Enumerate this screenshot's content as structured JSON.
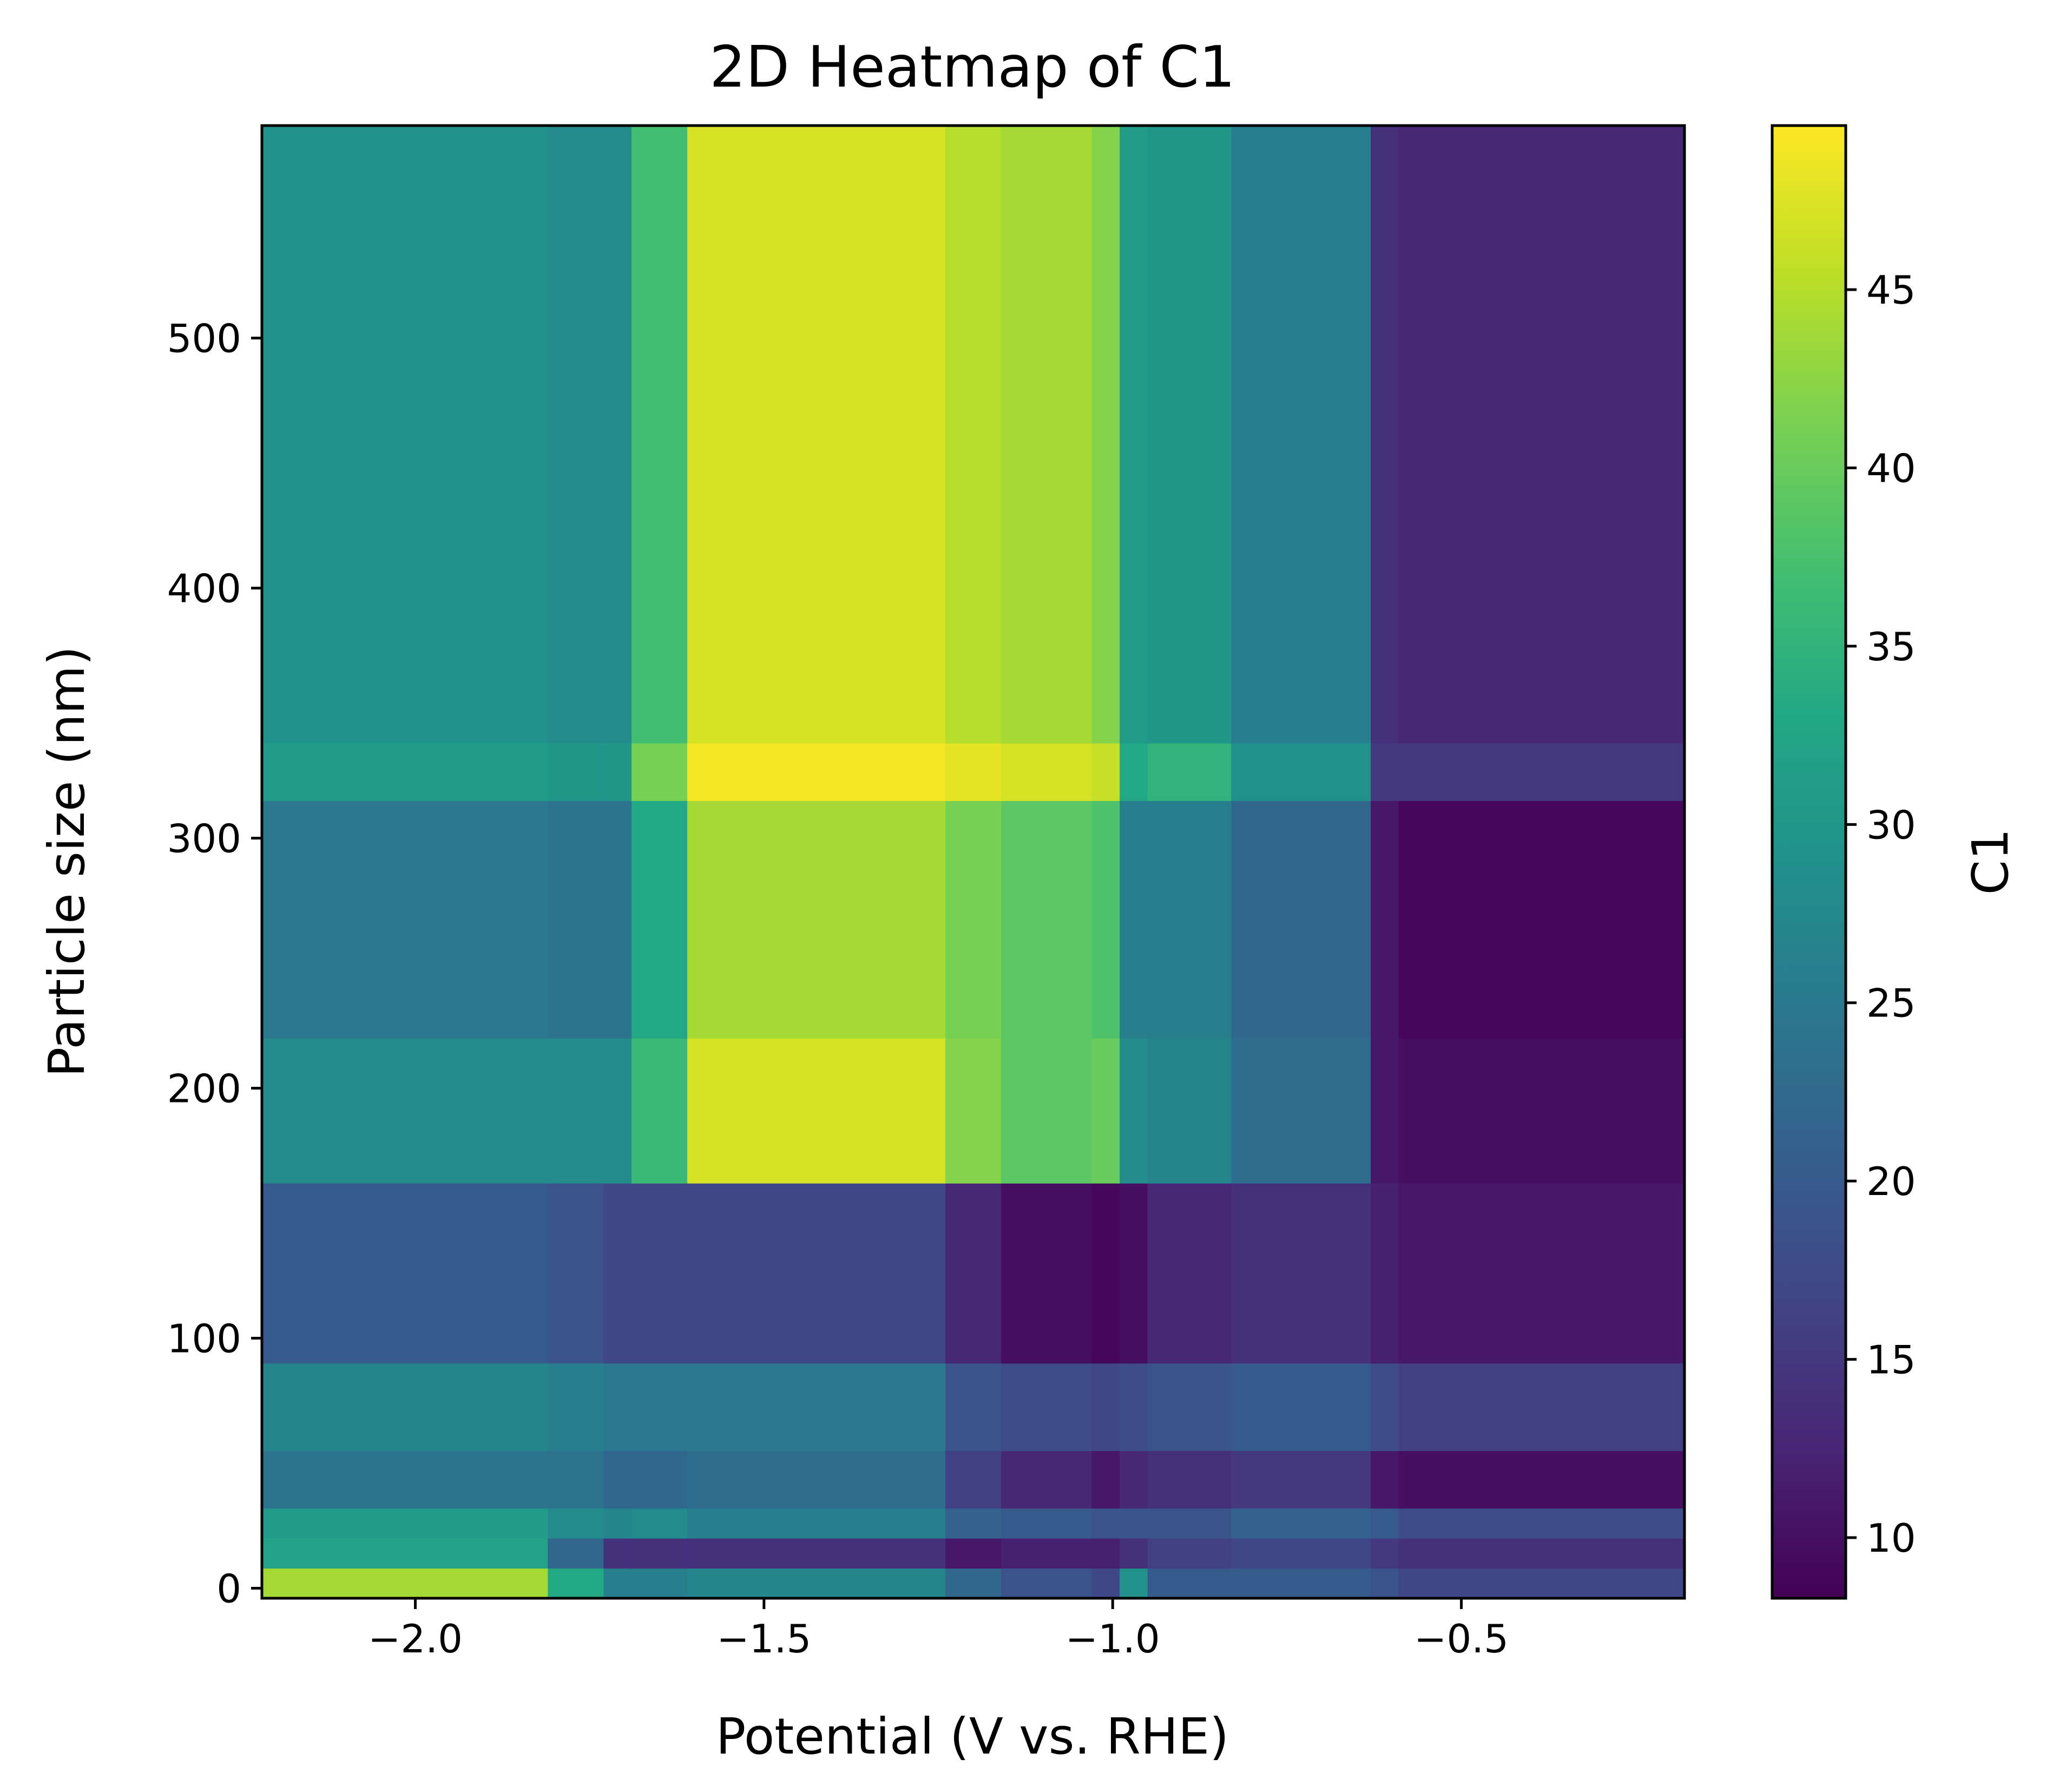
{
  "chart_data": {
    "type": "heatmap",
    "title": "2D Heatmap of C1",
    "xlabel": "Potential (V vs. RHE)",
    "ylabel": "Particle size (nm)",
    "colorbar_label": "C1",
    "colormap": "viridis",
    "xlim": [
      -2.22,
      -0.18
    ],
    "ylim": [
      -4,
      585
    ],
    "clim": [
      8.3,
      49.6
    ],
    "x_ticks": [
      -2.0,
      -1.5,
      -1.0,
      -0.5
    ],
    "x_tick_labels": [
      "−2.0",
      "−1.5",
      "−1.0",
      "−0.5"
    ],
    "y_ticks": [
      0,
      100,
      200,
      300,
      400,
      500
    ],
    "y_tick_labels": [
      "0",
      "100",
      "200",
      "300",
      "400",
      "500"
    ],
    "colorbar_ticks": [
      10,
      15,
      20,
      25,
      30,
      35,
      40,
      45
    ],
    "colorbar_tick_labels": [
      "10",
      "15",
      "20",
      "25",
      "30",
      "35",
      "40",
      "45"
    ],
    "x_edges": [
      -2.22,
      -1.81,
      -1.73,
      -1.69,
      -1.61,
      -1.24,
      -1.16,
      -1.03,
      -0.99,
      -0.95,
      -0.83,
      -0.63,
      -0.59,
      -0.18
    ],
    "y_edges": [
      -4,
      8,
      20,
      32,
      55,
      90,
      162,
      220,
      315,
      338,
      585
    ],
    "values": [
      [
        44,
        33,
        26,
        26,
        27,
        22,
        19,
        17,
        29,
        20,
        20,
        19,
        17
      ],
      [
        32,
        22,
        14,
        14,
        14,
        11,
        12,
        12,
        14,
        16,
        17,
        15,
        14
      ],
      [
        31,
        28,
        27,
        28,
        26,
        21,
        20,
        19,
        19,
        19,
        21,
        20,
        18
      ],
      [
        24,
        24,
        22,
        22,
        23,
        16,
        13,
        11,
        13,
        14,
        15,
        11,
        10
      ],
      [
        27,
        26,
        25,
        25,
        25,
        19,
        18,
        17,
        18,
        19,
        20,
        18,
        16
      ],
      [
        20,
        19,
        17,
        17,
        17,
        13,
        10,
        9,
        10,
        13,
        14,
        12,
        11
      ],
      [
        28,
        28,
        28,
        36,
        47,
        42,
        39,
        40,
        28,
        27,
        23,
        11,
        10
      ],
      [
        25,
        24,
        24,
        33,
        44,
        41,
        39,
        38,
        26,
        26,
        22,
        11,
        9
      ],
      [
        31,
        30,
        30,
        41,
        49,
        48,
        47,
        46,
        33,
        35,
        29,
        15,
        15
      ],
      [
        29,
        28,
        28,
        37,
        47,
        45,
        44,
        42,
        31,
        30,
        26,
        14,
        13
      ]
    ]
  }
}
